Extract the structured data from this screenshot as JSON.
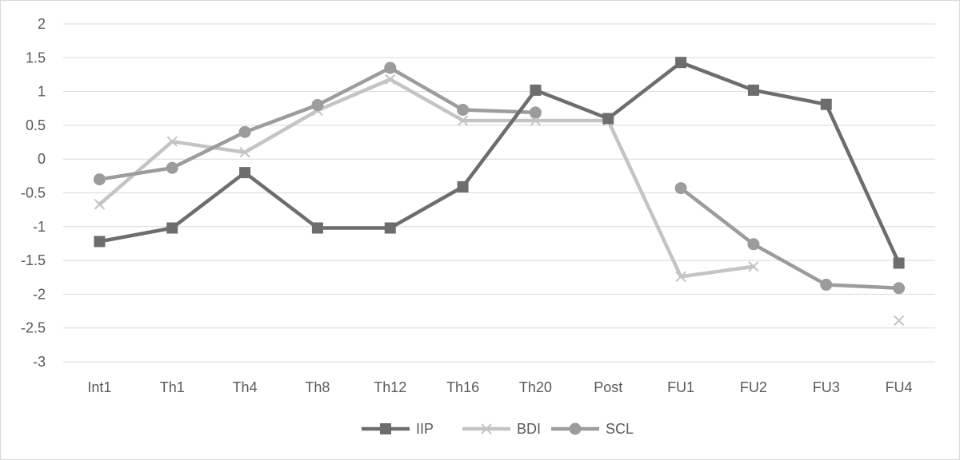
{
  "chart_data": {
    "type": "line",
    "title": "",
    "xlabel": "",
    "ylabel": "",
    "categories": [
      "Int1",
      "Th1",
      "Th4",
      "Th8",
      "Th12",
      "Th16",
      "Th20",
      "Post",
      "FU1",
      "FU2",
      "FU3",
      "FU4"
    ],
    "ylim": [
      -3,
      2
    ],
    "yticks": [
      2,
      1.5,
      1,
      0.5,
      0,
      -0.5,
      -1,
      -1.5,
      -2,
      -2.5,
      -3
    ],
    "grid": true,
    "legend_position": "bottom",
    "series": [
      {
        "name": "IIP",
        "marker": "square",
        "color": "#6d6d6d",
        "values": [
          -1.22,
          -1.02,
          -0.2,
          -1.02,
          -1.02,
          -0.41,
          1.02,
          0.6,
          1.43,
          1.02,
          0.81,
          -1.54
        ]
      },
      {
        "name": "BDI",
        "marker": "x",
        "color": "#c4c4c4",
        "values": [
          -0.67,
          0.26,
          0.1,
          0.72,
          1.18,
          0.57,
          0.57,
          0.57,
          -1.74,
          -1.59,
          null,
          -2.39
        ]
      },
      {
        "name": "SCL",
        "marker": "circle",
        "color": "#9c9c9c",
        "values": [
          -0.3,
          -0.13,
          0.4,
          0.8,
          1.35,
          0.73,
          0.69,
          null,
          -0.43,
          -1.26,
          -1.86,
          -1.91
        ]
      }
    ]
  }
}
